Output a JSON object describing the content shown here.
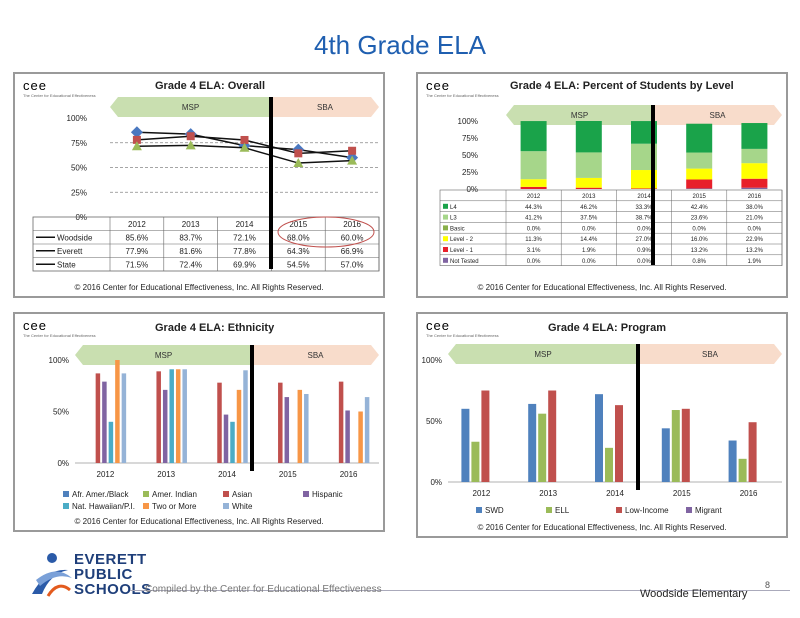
{
  "page": {
    "title": "4th Grade ELA",
    "footer_org": [
      "EVERETT",
      "PUBLIC",
      "SCHOOLS"
    ],
    "compiled_by": "Compiled by the Center for Educational Effectiveness",
    "school": "Woodside Elementary",
    "page_number": "8"
  },
  "brand": {
    "letters": "cee",
    "tagline": "The Center for Educational Effectiveness"
  },
  "copyright": "© 2016 Center for Educational Effectiveness, Inc. All Rights Reserved.",
  "phases": {
    "left": "MSP",
    "right": "SBA"
  },
  "colors": {
    "title": "#1f5fb0",
    "msp_band": "#c9dfb0",
    "sba_band": "#f8dccb"
  },
  "chart_data": [
    {
      "id": "overall",
      "type": "line",
      "title": "Grade 4 ELA: Overall",
      "categories": [
        "2012",
        "2013",
        "2014",
        "2015",
        "2016"
      ],
      "yticks": [
        "100%",
        "75%",
        "50%",
        "25%",
        "0%"
      ],
      "ylim": [
        0,
        100
      ],
      "series": [
        {
          "name": "Woodside",
          "values": [
            85.6,
            83.7,
            72.1,
            68.0,
            60.0
          ],
          "labels": [
            "85.6%",
            "83.7%",
            "72.1%",
            "68.0%",
            "60.0%"
          ],
          "color": "#4a78c0",
          "marker": "diamond"
        },
        {
          "name": "Everett",
          "values": [
            77.9,
            81.6,
            77.8,
            64.3,
            66.9
          ],
          "labels": [
            "77.9%",
            "81.6%",
            "77.8%",
            "64.3%",
            "66.9%"
          ],
          "color": "#c0504d",
          "marker": "square"
        },
        {
          "name": "State",
          "values": [
            71.5,
            72.4,
            69.9,
            54.5,
            57.0
          ],
          "labels": [
            "71.5%",
            "72.4%",
            "69.9%",
            "54.5%",
            "57.0%"
          ],
          "color": "#9bbb59",
          "marker": "triangle"
        }
      ]
    },
    {
      "id": "levels",
      "type": "bar",
      "stacked": true,
      "title": "Grade 4 ELA: Percent of Students by Level",
      "categories": [
        "2012",
        "2013",
        "2014",
        "2015",
        "2016"
      ],
      "yticks": [
        "100%",
        "75%",
        "50%",
        "25%",
        "0%"
      ],
      "ylim": [
        0,
        100
      ],
      "series": [
        {
          "name": "L4",
          "values": [
            44.3,
            46.2,
            33.3,
            42.4,
            38.0
          ],
          "labels": [
            "44.3%",
            "46.2%",
            "33.3%",
            "42.4%",
            "38.0%"
          ],
          "color": "#1aa34a"
        },
        {
          "name": "L3",
          "values": [
            41.2,
            37.5,
            38.7,
            23.6,
            21.0
          ],
          "labels": [
            "41.2%",
            "37.5%",
            "38.7%",
            "23.6%",
            "21.0%"
          ],
          "color": "#a6d68a"
        },
        {
          "name": "Basic",
          "values": [
            0.0,
            0.0,
            0.0,
            0.0,
            0.0
          ],
          "labels": [
            "0.0%",
            "0.0%",
            "0.0%",
            "0.0%",
            "0.0%"
          ],
          "color": "#8ab04a"
        },
        {
          "name": "Level - 2",
          "values": [
            11.3,
            14.4,
            27.0,
            16.0,
            22.9
          ],
          "labels": [
            "11.3%",
            "14.4%",
            "27.0%",
            "16.0%",
            "22.9%"
          ],
          "color": "#ffff00"
        },
        {
          "name": "Level - 1",
          "values": [
            3.1,
            1.9,
            0.9,
            13.2,
            13.2
          ],
          "labels": [
            "3.1%",
            "1.9%",
            "0.9%",
            "13.2%",
            "13.2%"
          ],
          "color": "#e8202a"
        },
        {
          "name": "Not Tested",
          "values": [
            0.0,
            0.0,
            0.0,
            0.8,
            1.9
          ],
          "labels": [
            "0.0%",
            "0.0%",
            "0.0%",
            "0.8%",
            "1.9%"
          ],
          "color": "#8064a2"
        }
      ]
    },
    {
      "id": "ethnicity",
      "type": "bar",
      "title": "Grade 4 ELA: Ethnicity",
      "categories": [
        "2012",
        "2013",
        "2014",
        "2015",
        "2016"
      ],
      "yticks": [
        "100%",
        "50%",
        "0%"
      ],
      "ylim": [
        0,
        100
      ],
      "series": [
        {
          "name": "Afr. Amer./Black",
          "values": [
            null,
            null,
            null,
            null,
            null
          ],
          "color": "#4f81bd"
        },
        {
          "name": "Amer. Indian",
          "values": [
            null,
            null,
            null,
            null,
            null
          ],
          "color": "#9bbb59"
        },
        {
          "name": "Asian",
          "values": [
            87,
            89,
            78,
            78,
            79
          ],
          "color": "#c0504d"
        },
        {
          "name": "Hispanic",
          "values": [
            79,
            71,
            47,
            64,
            51
          ],
          "color": "#8064a2"
        },
        {
          "name": "Nat. Hawaiian/P.I.",
          "values": [
            40,
            91,
            40,
            null,
            null
          ],
          "color": "#4bacc6"
        },
        {
          "name": "Two or More",
          "values": [
            100,
            91,
            71,
            71,
            50
          ],
          "color": "#f79646"
        },
        {
          "name": "White",
          "values": [
            87,
            91,
            90,
            67,
            64
          ],
          "color": "#95b3d7"
        }
      ]
    },
    {
      "id": "program",
      "type": "bar",
      "title": "Grade 4 ELA: Program",
      "categories": [
        "2012",
        "2013",
        "2014",
        "2015",
        "2016"
      ],
      "yticks": [
        "100%",
        "50%",
        "0%"
      ],
      "ylim": [
        0,
        100
      ],
      "series": [
        {
          "name": "SWD",
          "values": [
            60,
            64,
            72,
            44,
            34
          ],
          "color": "#4f81bd"
        },
        {
          "name": "ELL",
          "values": [
            33,
            56,
            28,
            59,
            19
          ],
          "color": "#9bbb59"
        },
        {
          "name": "Low-Income",
          "values": [
            75,
            75,
            63,
            60,
            49
          ],
          "color": "#c0504d"
        },
        {
          "name": "Migrant",
          "values": [
            null,
            null,
            null,
            null,
            null
          ],
          "color": "#8064a2"
        }
      ]
    }
  ]
}
